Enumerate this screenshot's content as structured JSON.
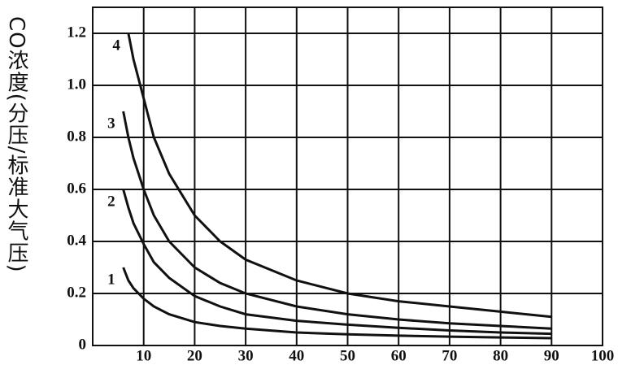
{
  "chart_data": {
    "type": "line",
    "y_label": "CO浓度(分压/标准大气压)",
    "x": [
      6,
      7,
      8,
      10,
      12,
      15,
      20,
      25,
      30,
      40,
      50,
      60,
      70,
      80,
      90
    ],
    "series": [
      {
        "name": "1",
        "color": "#111111",
        "values": [
          0.3,
          0.25,
          0.22,
          0.18,
          0.15,
          0.12,
          0.09,
          0.075,
          0.065,
          0.05,
          0.043,
          0.038,
          0.034,
          0.031,
          0.028
        ]
      },
      {
        "name": "2",
        "color": "#111111",
        "values": [
          0.6,
          0.53,
          0.47,
          0.39,
          0.32,
          0.26,
          0.19,
          0.15,
          0.12,
          0.095,
          0.08,
          0.068,
          0.058,
          0.05,
          0.045
        ]
      },
      {
        "name": "3",
        "color": "#111111",
        "values": [
          0.9,
          0.8,
          0.72,
          0.6,
          0.5,
          0.4,
          0.3,
          0.24,
          0.2,
          0.15,
          0.12,
          0.1,
          0.085,
          0.075,
          0.065
        ]
      },
      {
        "name": "4",
        "color": "#111111",
        "values": [
          null,
          1.2,
          1.1,
          0.95,
          0.8,
          0.66,
          0.5,
          0.4,
          0.33,
          0.25,
          0.2,
          0.17,
          0.15,
          0.13,
          0.11
        ]
      }
    ],
    "xlim": [
      0,
      100
    ],
    "xticks": [
      10,
      20,
      30,
      40,
      50,
      60,
      70,
      80,
      90,
      100
    ],
    "ylim": [
      0,
      1.3
    ],
    "yticks": [
      0,
      0.2,
      0.4,
      0.6,
      0.8,
      {
        "value": 1,
        "label": "1.0"
      },
      1.2
    ],
    "grid": true
  }
}
